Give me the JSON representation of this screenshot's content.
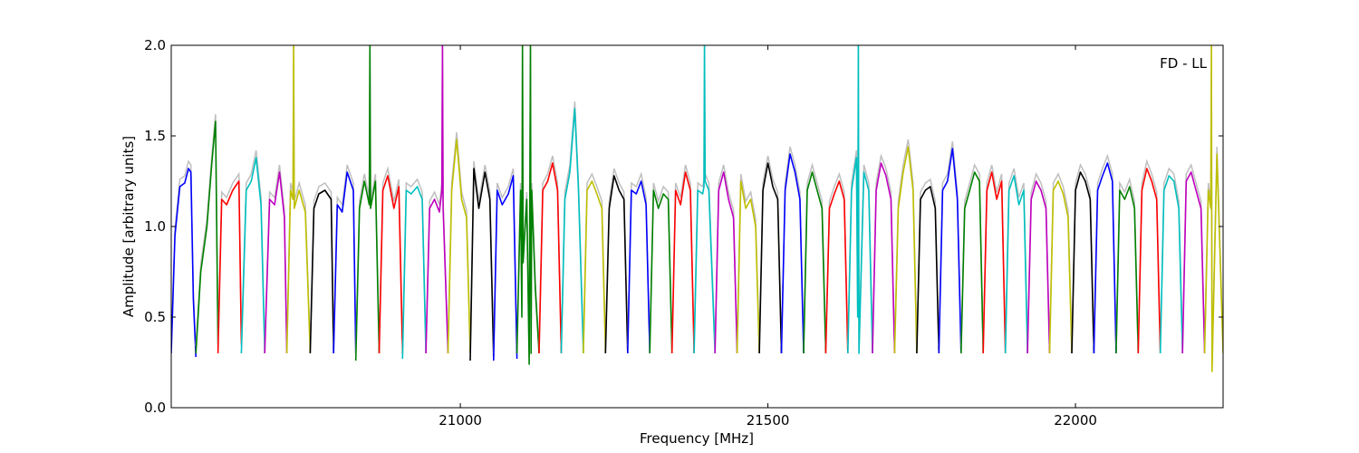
{
  "chart_data": {
    "type": "line",
    "xlabel": "Frequency [MHz]",
    "ylabel": "Amplitude [arbitrary units]",
    "annotation": "FD - LL",
    "xlim": [
      20530,
      22240
    ],
    "ylim": [
      0.0,
      2.0
    ],
    "xticks": [
      {
        "value": 21000,
        "label": "21000"
      },
      {
        "value": 21500,
        "label": "21500"
      },
      {
        "value": 22000,
        "label": "22000"
      }
    ],
    "yticks": [
      {
        "value": 0.0,
        "label": "0.0"
      },
      {
        "value": 0.5,
        "label": "0.5"
      },
      {
        "value": 1.0,
        "label": "1.0"
      },
      {
        "value": 1.5,
        "label": "1.5"
      },
      {
        "value": 2.0,
        "label": "2.0"
      }
    ],
    "grid": false,
    "band_width_mhz": 32,
    "color_cycle": [
      "#0000ff",
      "#008000",
      "#ff0000",
      "#00bfbf",
      "#bf00bf",
      "#bfbf00",
      "#000000"
    ],
    "reference_color": "#bfbfbf",
    "series": [
      {
        "color": "#0000ff",
        "x": [
          20530,
          20536,
          20544,
          20552,
          20558,
          20562,
          20566,
          20570
        ],
        "y": [
          0.3,
          0.95,
          1.22,
          1.24,
          1.32,
          1.3,
          0.6,
          0.28
        ]
      },
      {
        "color": "#008000",
        "x": [
          20570,
          20578,
          20588,
          20596,
          20602,
          20606
        ],
        "y": [
          0.3,
          0.75,
          1.0,
          1.35,
          1.58,
          0.35
        ]
      },
      {
        "color": "#ff0000",
        "x": [
          20606,
          20612,
          20620,
          20630,
          20640,
          20644
        ],
        "y": [
          0.3,
          1.15,
          1.12,
          1.2,
          1.25,
          0.35
        ]
      },
      {
        "color": "#00bfbf",
        "x": [
          20644,
          20652,
          20660,
          20668,
          20676,
          20682
        ],
        "y": [
          0.3,
          1.2,
          1.25,
          1.38,
          1.12,
          0.3
        ]
      },
      {
        "color": "#bf00bf",
        "x": [
          20682,
          20690,
          20698,
          20706,
          20714,
          20718
        ],
        "y": [
          0.3,
          1.15,
          1.12,
          1.3,
          1.05,
          0.3
        ]
      },
      {
        "color": "#bfbf00",
        "x": [
          20718,
          20724,
          20728,
          20729,
          20730,
          20738,
          20748,
          20756
        ],
        "y": [
          0.3,
          1.2,
          1.15,
          2.0,
          1.1,
          1.2,
          1.08,
          0.3
        ]
      },
      {
        "color": "#000000",
        "x": [
          20756,
          20762,
          20770,
          20780,
          20790,
          20794
        ],
        "y": [
          0.3,
          1.1,
          1.18,
          1.2,
          1.15,
          0.3
        ]
      },
      {
        "color": "#0000ff",
        "x": [
          20794,
          20800,
          20808,
          20816,
          20826,
          20830
        ],
        "y": [
          0.3,
          1.12,
          1.08,
          1.3,
          1.2,
          0.3
        ]
      },
      {
        "color": "#008000",
        "x": [
          20830,
          20836,
          20844,
          20852,
          20853,
          20854,
          20862,
          20868
        ],
        "y": [
          0.26,
          1.1,
          1.25,
          1.12,
          2.0,
          1.1,
          1.25,
          0.3
        ]
      },
      {
        "color": "#ff0000",
        "x": [
          20868,
          20874,
          20882,
          20892,
          20900,
          20906
        ],
        "y": [
          0.3,
          1.2,
          1.28,
          1.1,
          1.22,
          0.3
        ]
      },
      {
        "color": "#00bfbf",
        "x": [
          20906,
          20912,
          20920,
          20930,
          20938,
          20944
        ],
        "y": [
          0.27,
          1.2,
          1.18,
          1.22,
          1.15,
          0.3
        ]
      },
      {
        "color": "#bf00bf",
        "x": [
          20944,
          20950,
          20958,
          20966,
          20970,
          20971,
          20972,
          20980
        ],
        "y": [
          0.3,
          1.1,
          1.15,
          1.08,
          1.2,
          2.0,
          1.1,
          0.3
        ]
      },
      {
        "color": "#bfbf00",
        "x": [
          20980,
          20986,
          20994,
          21002,
          21010,
          21016
        ],
        "y": [
          0.3,
          1.2,
          1.48,
          1.15,
          1.05,
          0.3
        ]
      },
      {
        "color": "#000000",
        "x": [
          21016,
          21022,
          21030,
          21040,
          21048,
          21054
        ],
        "y": [
          0.26,
          1.32,
          1.1,
          1.3,
          1.15,
          0.28
        ]
      },
      {
        "color": "#0000ff",
        "x": [
          21054,
          21060,
          21068,
          21078,
          21086,
          21092
        ],
        "y": [
          0.26,
          1.2,
          1.12,
          1.18,
          1.28,
          0.27
        ]
      },
      {
        "color": "#008000",
        "x": [
          21092,
          21098,
          21100,
          21101,
          21102,
          21108,
          21112,
          21114,
          21115,
          21116,
          21122,
          21128
        ],
        "y": [
          0.3,
          1.2,
          0.5,
          2.0,
          0.8,
          1.15,
          0.24,
          2.0,
          0.3,
          1.2,
          0.65,
          0.3
        ]
      },
      {
        "color": "#ff0000",
        "x": [
          21128,
          21134,
          21142,
          21150,
          21158,
          21164
        ],
        "y": [
          0.3,
          1.2,
          1.25,
          1.35,
          1.2,
          0.3
        ]
      },
      {
        "color": "#00bfbf",
        "x": [
          21164,
          21170,
          21178,
          21186,
          21192,
          21200
        ],
        "y": [
          0.3,
          1.15,
          1.3,
          1.65,
          1.2,
          0.3
        ]
      },
      {
        "color": "#bfbf00",
        "x": [
          21200,
          21206,
          21214,
          21222,
          21230,
          21236
        ],
        "y": [
          0.3,
          1.2,
          1.25,
          1.18,
          1.1,
          0.3
        ]
      },
      {
        "color": "#000000",
        "x": [
          21236,
          21242,
          21250,
          21258,
          21266,
          21272
        ],
        "y": [
          0.3,
          1.1,
          1.28,
          1.2,
          1.15,
          0.3
        ]
      },
      {
        "color": "#0000ff",
        "x": [
          21272,
          21278,
          21286,
          21294,
          21302,
          21308
        ],
        "y": [
          0.3,
          1.2,
          1.18,
          1.25,
          1.12,
          0.3
        ]
      },
      {
        "color": "#008000",
        "x": [
          21308,
          21314,
          21322,
          21330,
          21338,
          21344
        ],
        "y": [
          0.3,
          1.2,
          1.1,
          1.18,
          1.15,
          0.3
        ]
      },
      {
        "color": "#ff0000",
        "x": [
          21344,
          21350,
          21358,
          21366,
          21374,
          21380
        ],
        "y": [
          0.3,
          1.2,
          1.12,
          1.3,
          1.2,
          0.3
        ]
      },
      {
        "color": "#00bfbf",
        "x": [
          21380,
          21386,
          21394,
          21396,
          21397,
          21398,
          21404,
          21414
        ],
        "y": [
          0.3,
          1.2,
          1.18,
          1.22,
          2.0,
          1.25,
          1.2,
          0.3
        ]
      },
      {
        "color": "#bf00bf",
        "x": [
          21414,
          21420,
          21428,
          21436,
          21444,
          21450
        ],
        "y": [
          0.3,
          1.2,
          1.3,
          1.15,
          1.05,
          0.3
        ]
      },
      {
        "color": "#bfbf00",
        "x": [
          21450,
          21456,
          21464,
          21472,
          21480,
          21486
        ],
        "y": [
          0.3,
          1.25,
          1.1,
          1.15,
          1.0,
          0.3
        ]
      },
      {
        "color": "#000000",
        "x": [
          21486,
          21492,
          21500,
          21508,
          21516,
          21522
        ],
        "y": [
          0.3,
          1.2,
          1.35,
          1.22,
          1.15,
          0.3
        ]
      },
      {
        "color": "#0000ff",
        "x": [
          21522,
          21528,
          21536,
          21544,
          21552,
          21558
        ],
        "y": [
          0.3,
          1.2,
          1.4,
          1.3,
          1.15,
          0.3
        ]
      },
      {
        "color": "#008000",
        "x": [
          21558,
          21564,
          21572,
          21580,
          21588,
          21594
        ],
        "y": [
          0.3,
          1.2,
          1.3,
          1.2,
          1.1,
          0.3
        ]
      },
      {
        "color": "#ff0000",
        "x": [
          21594,
          21600,
          21608,
          21616,
          21624,
          21630
        ],
        "y": [
          0.3,
          1.1,
          1.18,
          1.25,
          1.15,
          0.3
        ]
      },
      {
        "color": "#00bfbf",
        "x": [
          21630,
          21636,
          21644,
          21646,
          21647,
          21648,
          21656,
          21664,
          21670
        ],
        "y": [
          0.3,
          1.2,
          1.38,
          0.5,
          2.0,
          0.3,
          1.3,
          1.2,
          0.3
        ]
      },
      {
        "color": "#bf00bf",
        "x": [
          21670,
          21676,
          21684,
          21692,
          21700,
          21706
        ],
        "y": [
          0.3,
          1.2,
          1.35,
          1.28,
          1.15,
          0.3
        ]
      },
      {
        "color": "#bfbf00",
        "x": [
          21706,
          21712,
          21720,
          21728,
          21736,
          21742
        ],
        "y": [
          0.3,
          1.1,
          1.3,
          1.44,
          1.2,
          0.3
        ]
      },
      {
        "color": "#000000",
        "x": [
          21742,
          21748,
          21756,
          21764,
          21772,
          21778
        ],
        "y": [
          0.3,
          1.15,
          1.2,
          1.22,
          1.1,
          0.3
        ]
      },
      {
        "color": "#0000ff",
        "x": [
          21778,
          21784,
          21792,
          21800,
          21808,
          21814
        ],
        "y": [
          0.3,
          1.2,
          1.25,
          1.43,
          1.15,
          0.3
        ]
      },
      {
        "color": "#008000",
        "x": [
          21814,
          21820,
          21828,
          21836,
          21844,
          21850
        ],
        "y": [
          0.3,
          1.1,
          1.2,
          1.3,
          1.25,
          0.3
        ]
      },
      {
        "color": "#ff0000",
        "x": [
          21850,
          21856,
          21864,
          21872,
          21880,
          21886
        ],
        "y": [
          0.3,
          1.2,
          1.3,
          1.15,
          1.25,
          0.3
        ]
      },
      {
        "color": "#00bfbf",
        "x": [
          21886,
          21892,
          21900,
          21908,
          21916,
          21922
        ],
        "y": [
          0.3,
          1.2,
          1.28,
          1.12,
          1.2,
          0.3
        ]
      },
      {
        "color": "#bf00bf",
        "x": [
          21922,
          21928,
          21936,
          21944,
          21952,
          21958
        ],
        "y": [
          0.3,
          1.15,
          1.25,
          1.2,
          1.1,
          0.3
        ]
      },
      {
        "color": "#bfbf00",
        "x": [
          21958,
          21964,
          21972,
          21980,
          21988,
          21994
        ],
        "y": [
          0.3,
          1.2,
          1.25,
          1.18,
          1.05,
          0.3
        ]
      },
      {
        "color": "#000000",
        "x": [
          21994,
          22000,
          22008,
          22016,
          22024,
          22030
        ],
        "y": [
          0.3,
          1.2,
          1.3,
          1.25,
          1.15,
          0.3
        ]
      },
      {
        "color": "#0000ff",
        "x": [
          22030,
          22036,
          22044,
          22052,
          22060,
          22066
        ],
        "y": [
          0.3,
          1.2,
          1.28,
          1.35,
          1.25,
          0.3
        ]
      },
      {
        "color": "#008000",
        "x": [
          22066,
          22072,
          22080,
          22088,
          22096,
          22102
        ],
        "y": [
          0.3,
          1.2,
          1.15,
          1.22,
          1.1,
          0.3
        ]
      },
      {
        "color": "#ff0000",
        "x": [
          22102,
          22108,
          22116,
          22124,
          22132,
          22138
        ],
        "y": [
          0.3,
          1.2,
          1.32,
          1.25,
          1.15,
          0.3
        ]
      },
      {
        "color": "#00bfbf",
        "x": [
          22138,
          22144,
          22152,
          22160,
          22168,
          22174
        ],
        "y": [
          0.3,
          1.2,
          1.28,
          1.25,
          1.1,
          0.3
        ]
      },
      {
        "color": "#bf00bf",
        "x": [
          22174,
          22180,
          22188,
          22196,
          22204,
          22210
        ],
        "y": [
          0.3,
          1.25,
          1.3,
          1.2,
          1.1,
          0.3
        ]
      },
      {
        "color": "#bfbf00",
        "x": [
          22210,
          22216,
          22220,
          22221,
          22222,
          22230,
          22240
        ],
        "y": [
          0.3,
          1.2,
          1.1,
          2.0,
          0.2,
          1.4,
          0.3
        ]
      }
    ]
  }
}
